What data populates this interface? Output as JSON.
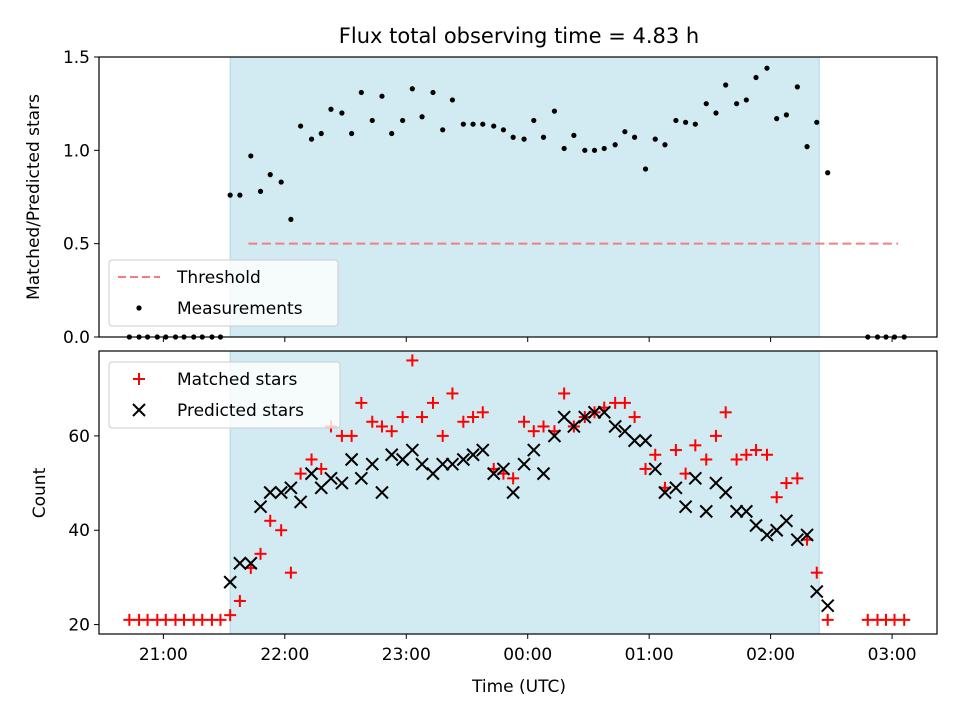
{
  "chart_data": [
    {
      "type": "scatter",
      "title": "Flux total observing time = 4.83 h",
      "xlabel": "",
      "ylabel": "Matched/Predicted stars",
      "ylim": [
        0,
        1.5
      ],
      "yticks": [
        "0.0",
        "0.5",
        "1.0",
        "1.5"
      ],
      "shaded_span": {
        "start_hour": 21.55,
        "end_hour": 26.4,
        "color": "#add8e6"
      },
      "threshold": {
        "name": "Threshold",
        "value": 0.5,
        "x_start_hour": 21.7,
        "x_end_hour": 27.05,
        "color": "#f08080"
      },
      "legend": {
        "position": "lower-left",
        "entries": [
          "Threshold",
          "Measurements"
        ]
      },
      "series": [
        {
          "name": "Measurements",
          "marker": "dot",
          "color": "#000000",
          "x": [
            20.72,
            20.8,
            20.87,
            20.95,
            21.02,
            21.1,
            21.17,
            21.25,
            21.32,
            21.4,
            21.47,
            21.55,
            21.63,
            21.72,
            21.8,
            21.88,
            21.97,
            22.05,
            22.13,
            22.22,
            22.3,
            22.38,
            22.47,
            22.55,
            22.63,
            22.72,
            22.8,
            22.88,
            22.97,
            23.05,
            23.13,
            23.22,
            23.3,
            23.38,
            23.47,
            23.55,
            23.63,
            23.72,
            23.8,
            23.88,
            23.97,
            24.05,
            24.13,
            24.22,
            24.3,
            24.38,
            24.47,
            24.55,
            24.63,
            24.72,
            24.8,
            24.88,
            24.97,
            25.05,
            25.13,
            25.22,
            25.3,
            25.38,
            25.47,
            25.55,
            25.63,
            25.72,
            25.8,
            25.88,
            25.97,
            26.05,
            26.13,
            26.22,
            26.3,
            26.38,
            26.47,
            26.8,
            26.88,
            26.95,
            27.02,
            27.1
          ],
          "y": [
            0,
            0,
            0,
            0,
            0,
            0,
            0,
            0,
            0,
            0,
            0,
            0.76,
            0.76,
            0.97,
            0.78,
            0.87,
            0.83,
            0.63,
            1.13,
            1.06,
            1.09,
            1.22,
            1.2,
            1.09,
            1.31,
            1.16,
            1.29,
            1.09,
            1.16,
            1.33,
            1.18,
            1.31,
            1.11,
            1.27,
            1.14,
            1.14,
            1.14,
            1.13,
            1.11,
            1.07,
            1.06,
            1.16,
            1.07,
            1.21,
            1.01,
            1.08,
            1.0,
            1.0,
            1.01,
            1.03,
            1.1,
            1.07,
            0.9,
            1.06,
            1.03,
            1.16,
            1.15,
            1.14,
            1.25,
            1.2,
            1.35,
            1.25,
            1.27,
            1.39,
            1.44,
            1.17,
            1.19,
            1.34,
            1.02,
            1.15,
            0.88,
            0,
            0,
            0,
            0,
            0
          ]
        }
      ]
    },
    {
      "type": "scatter",
      "title": "",
      "xlabel": "Time (UTC)",
      "ylabel": "Count",
      "ylim": [
        18,
        78
      ],
      "yticks": [
        "20",
        "40",
        "60"
      ],
      "xticks": [
        "21:00",
        "22:00",
        "23:00",
        "00:00",
        "01:00",
        "02:00",
        "03:00"
      ],
      "xtick_hours": [
        21,
        22,
        23,
        24,
        25,
        26,
        27
      ],
      "xlim_hours": [
        20.47,
        27.37
      ],
      "shaded_span": {
        "start_hour": 21.55,
        "end_hour": 26.4,
        "color": "#add8e6"
      },
      "legend": {
        "position": "top-left",
        "entries": [
          "Matched stars",
          "Predicted stars"
        ]
      },
      "x": [
        20.72,
        20.8,
        20.87,
        20.95,
        21.02,
        21.1,
        21.17,
        21.25,
        21.32,
        21.4,
        21.47,
        21.55,
        21.63,
        21.72,
        21.8,
        21.88,
        21.97,
        22.05,
        22.13,
        22.22,
        22.3,
        22.38,
        22.47,
        22.55,
        22.63,
        22.72,
        22.8,
        22.88,
        22.97,
        23.05,
        23.13,
        23.22,
        23.3,
        23.38,
        23.47,
        23.55,
        23.63,
        23.72,
        23.8,
        23.88,
        23.97,
        24.05,
        24.13,
        24.22,
        24.3,
        24.38,
        24.47,
        24.55,
        24.63,
        24.72,
        24.8,
        24.88,
        24.97,
        25.05,
        25.13,
        25.22,
        25.3,
        25.38,
        25.47,
        25.55,
        25.63,
        25.72,
        25.8,
        25.88,
        25.97,
        26.05,
        26.13,
        26.22,
        26.3,
        26.38,
        26.47,
        26.8,
        26.88,
        26.95,
        27.02,
        27.1
      ],
      "series": [
        {
          "name": "Matched stars",
          "marker": "plus",
          "color": "#ff0000",
          "values": [
            21,
            21,
            21,
            21,
            21,
            21,
            21,
            21,
            21,
            21,
            21,
            22,
            25,
            32,
            35,
            42,
            40,
            31,
            52,
            55,
            53,
            62,
            60,
            60,
            67,
            63,
            62,
            61,
            64,
            76,
            64,
            67,
            60,
            69,
            63,
            64,
            65,
            53,
            52,
            51,
            63,
            61,
            62,
            61,
            69,
            62,
            64,
            65,
            66,
            67,
            67,
            64,
            53,
            56,
            49,
            57,
            52,
            58,
            55,
            60,
            65,
            55,
            56,
            57,
            56,
            47,
            50,
            51,
            38,
            31,
            21,
            21,
            21,
            21,
            21,
            21
          ]
        },
        {
          "name": "Predicted stars",
          "marker": "x",
          "color": "#000000",
          "values": [
            null,
            null,
            null,
            null,
            null,
            null,
            null,
            null,
            null,
            null,
            null,
            29,
            33,
            33,
            45,
            48,
            48,
            49,
            46,
            52,
            49,
            51,
            50,
            55,
            51,
            54,
            48,
            56,
            55,
            57,
            54,
            52,
            54,
            54,
            55,
            56,
            57,
            52,
            53,
            48,
            54,
            57,
            52,
            60,
            64,
            62,
            64,
            65,
            65,
            62,
            61,
            59,
            59,
            53,
            48,
            49,
            45,
            51,
            44,
            50,
            48,
            44,
            44,
            41,
            39,
            40,
            42,
            38,
            39,
            27,
            24,
            null,
            null,
            null,
            null,
            null
          ]
        }
      ]
    }
  ]
}
